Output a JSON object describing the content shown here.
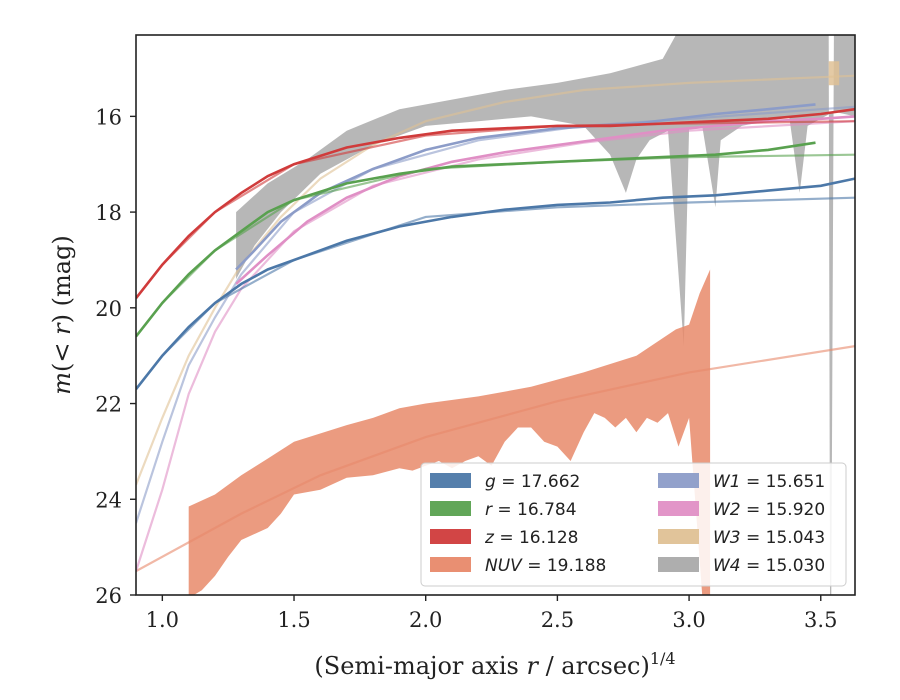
{
  "chart_data": {
    "type": "line",
    "xlabel_main": "(Semi-major axis ",
    "xlabel_r": "r",
    "xlabel_tail": " / arcsec)",
    "xlabel_sup": "1/4",
    "ylabel_pre": "m(< ",
    "ylabel_r": "r",
    "ylabel_post": ") (mag)",
    "xlim": [
      0.9,
      3.63
    ],
    "ylim": [
      26,
      14.3
    ],
    "y_inverted": true,
    "xticks": [
      1.0,
      1.5,
      2.0,
      2.5,
      3.0,
      3.5
    ],
    "xtick_labels": [
      "1.0",
      "1.5",
      "2.0",
      "2.5",
      "3.0",
      "3.5"
    ],
    "yticks": [
      16,
      18,
      20,
      22,
      24,
      26
    ],
    "ytick_labels": [
      "16",
      "18",
      "20",
      "22",
      "24",
      "26"
    ],
    "legend_position": "lower-right",
    "series": [
      {
        "name": "g = 17.662",
        "color": "#4c78a8",
        "legend": {
          "sym": "g",
          "val": "17.662"
        },
        "data": [
          [
            0.9,
            21.7
          ],
          [
            1.0,
            21.0
          ],
          [
            1.1,
            20.4
          ],
          [
            1.2,
            19.9
          ],
          [
            1.3,
            19.5
          ],
          [
            1.4,
            19.2
          ],
          [
            1.5,
            19.0
          ],
          [
            1.7,
            18.6
          ],
          [
            1.9,
            18.3
          ],
          [
            2.1,
            18.1
          ],
          [
            2.3,
            17.95
          ],
          [
            2.5,
            17.85
          ],
          [
            2.7,
            17.8
          ],
          [
            2.9,
            17.7
          ],
          [
            3.1,
            17.65
          ],
          [
            3.3,
            17.55
          ],
          [
            3.5,
            17.45
          ],
          [
            3.63,
            17.3
          ]
        ],
        "model": [
          [
            0.9,
            21.7
          ],
          [
            1.0,
            21.0
          ],
          [
            1.2,
            19.9
          ],
          [
            1.5,
            19.0
          ],
          [
            2.0,
            18.1
          ],
          [
            2.5,
            17.9
          ],
          [
            3.0,
            17.8
          ],
          [
            3.63,
            17.7
          ]
        ]
      },
      {
        "name": "r = 16.784",
        "color": "#59a14f",
        "legend": {
          "sym": "r",
          "val": "16.784"
        },
        "data": [
          [
            0.9,
            20.6
          ],
          [
            1.0,
            19.9
          ],
          [
            1.1,
            19.3
          ],
          [
            1.2,
            18.8
          ],
          [
            1.3,
            18.4
          ],
          [
            1.4,
            18.0
          ],
          [
            1.5,
            17.75
          ],
          [
            1.7,
            17.4
          ],
          [
            1.9,
            17.2
          ],
          [
            2.1,
            17.05
          ],
          [
            2.3,
            17.0
          ],
          [
            2.5,
            16.95
          ],
          [
            2.7,
            16.9
          ],
          [
            2.9,
            16.85
          ],
          [
            3.1,
            16.8
          ],
          [
            3.3,
            16.7
          ],
          [
            3.48,
            16.55
          ]
        ],
        "model": [
          [
            0.9,
            20.6
          ],
          [
            1.0,
            19.9
          ],
          [
            1.2,
            18.8
          ],
          [
            1.5,
            17.75
          ],
          [
            2.0,
            17.1
          ],
          [
            2.5,
            16.95
          ],
          [
            3.0,
            16.85
          ],
          [
            3.63,
            16.8
          ]
        ]
      },
      {
        "name": "z = 16.128",
        "color": "#d03b3b",
        "legend": {
          "sym": "z",
          "val": "16.128"
        },
        "data": [
          [
            0.9,
            19.8
          ],
          [
            1.0,
            19.1
          ],
          [
            1.1,
            18.5
          ],
          [
            1.2,
            18.0
          ],
          [
            1.3,
            17.6
          ],
          [
            1.4,
            17.25
          ],
          [
            1.5,
            17.0
          ],
          [
            1.7,
            16.65
          ],
          [
            1.9,
            16.45
          ],
          [
            2.1,
            16.3
          ],
          [
            2.3,
            16.25
          ],
          [
            2.5,
            16.2
          ],
          [
            2.7,
            16.2
          ],
          [
            2.9,
            16.15
          ],
          [
            3.1,
            16.1
          ],
          [
            3.3,
            16.05
          ],
          [
            3.5,
            15.95
          ],
          [
            3.63,
            15.85
          ]
        ],
        "model": [
          [
            0.9,
            19.8
          ],
          [
            1.0,
            19.1
          ],
          [
            1.2,
            18.0
          ],
          [
            1.5,
            17.0
          ],
          [
            2.0,
            16.4
          ],
          [
            2.5,
            16.2
          ],
          [
            3.0,
            16.15
          ],
          [
            3.63,
            16.1
          ]
        ]
      },
      {
        "name": "W1 = 15.651",
        "color": "#8c9cc8",
        "legend": {
          "sym": "W1",
          "val": "15.651"
        },
        "data": [
          [
            1.28,
            19.2
          ],
          [
            1.35,
            18.8
          ],
          [
            1.45,
            18.2
          ],
          [
            1.6,
            17.6
          ],
          [
            1.8,
            17.1
          ],
          [
            2.0,
            16.7
          ],
          [
            2.2,
            16.45
          ],
          [
            2.5,
            16.25
          ],
          [
            2.8,
            16.15
          ],
          [
            3.1,
            15.95
          ],
          [
            3.3,
            15.85
          ],
          [
            3.48,
            15.75
          ]
        ],
        "model": [
          [
            0.9,
            24.5
          ],
          [
            1.0,
            22.8
          ],
          [
            1.1,
            21.2
          ],
          [
            1.2,
            20.2
          ],
          [
            1.3,
            19.3
          ],
          [
            1.5,
            18.0
          ],
          [
            1.8,
            17.1
          ],
          [
            2.2,
            16.5
          ],
          [
            2.6,
            16.2
          ],
          [
            3.0,
            16.05
          ],
          [
            3.5,
            15.85
          ],
          [
            3.63,
            15.8
          ]
        ]
      },
      {
        "name": "W2 = 15.920",
        "color": "#e08fc5",
        "legend": {
          "sym": "W2",
          "val": "15.920"
        },
        "data": [
          [
            1.28,
            19.5
          ],
          [
            1.4,
            18.9
          ],
          [
            1.55,
            18.2
          ],
          [
            1.7,
            17.7
          ],
          [
            1.9,
            17.25
          ],
          [
            2.1,
            16.95
          ],
          [
            2.3,
            16.75
          ],
          [
            2.5,
            16.6
          ],
          [
            2.7,
            16.45
          ],
          [
            2.9,
            16.3
          ],
          [
            3.1,
            16.2
          ],
          [
            3.3,
            16.1
          ],
          [
            3.5,
            16.05
          ],
          [
            3.63,
            16.0
          ]
        ],
        "model": [
          [
            0.9,
            25.5
          ],
          [
            1.0,
            23.8
          ],
          [
            1.1,
            21.8
          ],
          [
            1.2,
            20.5
          ],
          [
            1.3,
            19.6
          ],
          [
            1.5,
            18.4
          ],
          [
            1.8,
            17.45
          ],
          [
            2.2,
            16.9
          ],
          [
            2.6,
            16.55
          ],
          [
            3.0,
            16.3
          ],
          [
            3.63,
            16.1
          ]
        ]
      },
      {
        "name": "W3 = 15.043",
        "color": "#dfc195",
        "legend": {
          "sym": "W3",
          "val": "15.043"
        },
        "data": [
          [
            3.55,
            15.0
          ],
          [
            3.55,
            15.3
          ]
        ],
        "model": [
          [
            0.9,
            23.7
          ],
          [
            1.0,
            22.3
          ],
          [
            1.1,
            21.0
          ],
          [
            1.2,
            20.0
          ],
          [
            1.3,
            19.1
          ],
          [
            1.45,
            18.1
          ],
          [
            1.6,
            17.3
          ],
          [
            1.8,
            16.6
          ],
          [
            2.0,
            16.1
          ],
          [
            2.3,
            15.7
          ],
          [
            2.6,
            15.45
          ],
          [
            3.0,
            15.3
          ],
          [
            3.63,
            15.15
          ]
        ],
        "band": [
          [
            3.53,
            14.85
          ],
          [
            3.53,
            15.35
          ],
          [
            3.57,
            15.35
          ],
          [
            3.57,
            14.85
          ]
        ]
      },
      {
        "name": "W4 = 15.030",
        "color": "#aaaaaa",
        "legend": {
          "sym": "W4",
          "val": "15.030"
        },
        "data": [],
        "model": [],
        "band": [
          [
            1.28,
            18.0
          ],
          [
            1.4,
            17.4
          ],
          [
            1.55,
            16.9
          ],
          [
            1.7,
            16.3
          ],
          [
            1.9,
            15.85
          ],
          [
            2.1,
            15.65
          ],
          [
            2.3,
            15.45
          ],
          [
            2.5,
            15.3
          ],
          [
            2.7,
            15.1
          ],
          [
            2.9,
            14.8
          ],
          [
            2.95,
            14.3
          ],
          [
            3.5,
            14.3
          ],
          [
            3.53,
            14.3
          ],
          [
            3.535,
            26.0
          ],
          [
            3.54,
            26.0
          ],
          [
            3.55,
            14.3
          ],
          [
            3.63,
            14.3
          ],
          [
            3.63,
            16.0
          ],
          [
            3.55,
            15.9
          ],
          [
            3.45,
            16.2
          ],
          [
            3.42,
            17.6
          ],
          [
            3.38,
            16.0
          ],
          [
            3.2,
            16.2
          ],
          [
            3.12,
            16.5
          ],
          [
            3.1,
            17.9
          ],
          [
            3.05,
            16.2
          ],
          [
            3.0,
            16.25
          ],
          [
            2.98,
            20.8
          ],
          [
            2.92,
            16.3
          ],
          [
            2.85,
            16.5
          ],
          [
            2.8,
            16.9
          ],
          [
            2.76,
            17.6
          ],
          [
            2.7,
            16.8
          ],
          [
            2.6,
            16.2
          ],
          [
            2.4,
            16.0
          ],
          [
            2.2,
            16.1
          ],
          [
            2.0,
            16.2
          ],
          [
            1.8,
            16.6
          ],
          [
            1.6,
            17.2
          ],
          [
            1.45,
            18.0
          ],
          [
            1.35,
            18.7
          ],
          [
            1.3,
            19.2
          ],
          [
            1.28,
            19.4
          ]
        ]
      },
      {
        "name": "NUV = 19.188",
        "color": "#e8896a",
        "legend": {
          "sym": "NUV",
          "val": "19.188"
        },
        "data": [],
        "model": [
          [
            0.9,
            25.5
          ],
          [
            1.3,
            24.3
          ],
          [
            1.6,
            23.5
          ],
          [
            2.0,
            22.7
          ],
          [
            2.5,
            21.95
          ],
          [
            3.0,
            21.35
          ],
          [
            3.63,
            20.8
          ]
        ],
        "band": [
          [
            1.1,
            24.15
          ],
          [
            1.2,
            23.9
          ],
          [
            1.3,
            23.5
          ],
          [
            1.4,
            23.15
          ],
          [
            1.5,
            22.8
          ],
          [
            1.7,
            22.45
          ],
          [
            1.8,
            22.3
          ],
          [
            1.9,
            22.1
          ],
          [
            2.0,
            22.0
          ],
          [
            2.2,
            21.85
          ],
          [
            2.4,
            21.65
          ],
          [
            2.6,
            21.35
          ],
          [
            2.8,
            21.0
          ],
          [
            2.95,
            20.45
          ],
          [
            3.0,
            20.35
          ],
          [
            3.04,
            19.7
          ],
          [
            3.08,
            19.2
          ],
          [
            3.08,
            26.0
          ],
          [
            3.05,
            26.0
          ],
          [
            3.0,
            22.3
          ],
          [
            2.96,
            22.9
          ],
          [
            2.92,
            22.2
          ],
          [
            2.88,
            22.4
          ],
          [
            2.84,
            22.3
          ],
          [
            2.8,
            22.6
          ],
          [
            2.76,
            22.3
          ],
          [
            2.72,
            22.5
          ],
          [
            2.68,
            22.3
          ],
          [
            2.64,
            22.2
          ],
          [
            2.6,
            22.6
          ],
          [
            2.55,
            23.2
          ],
          [
            2.5,
            22.9
          ],
          [
            2.45,
            22.8
          ],
          [
            2.4,
            22.5
          ],
          [
            2.35,
            22.5
          ],
          [
            2.3,
            22.8
          ],
          [
            2.25,
            23.3
          ],
          [
            2.2,
            23.1
          ],
          [
            2.15,
            23.2
          ],
          [
            2.1,
            23.35
          ],
          [
            2.05,
            23.2
          ],
          [
            2.0,
            23.3
          ],
          [
            1.95,
            23.4
          ],
          [
            1.9,
            23.35
          ],
          [
            1.8,
            23.5
          ],
          [
            1.7,
            23.55
          ],
          [
            1.6,
            23.8
          ],
          [
            1.5,
            23.9
          ],
          [
            1.45,
            24.3
          ],
          [
            1.4,
            24.6
          ],
          [
            1.3,
            24.85
          ],
          [
            1.25,
            25.2
          ],
          [
            1.2,
            25.6
          ],
          [
            1.15,
            25.9
          ],
          [
            1.12,
            26.0
          ],
          [
            1.1,
            26.0
          ]
        ]
      }
    ]
  }
}
